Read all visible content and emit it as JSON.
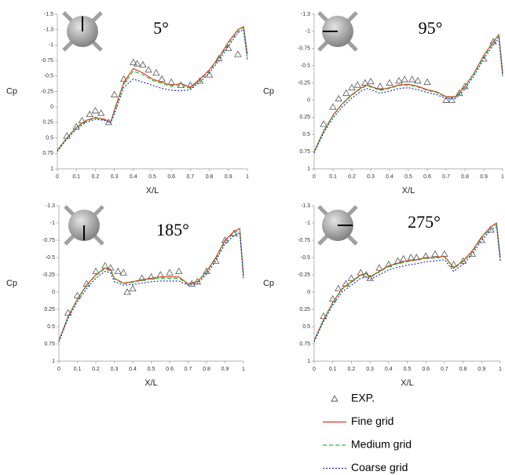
{
  "chart_data": [
    {
      "type": "line",
      "title": "5°",
      "x_label": "X/L",
      "y_label": "Cp",
      "xlim": [
        0,
        1
      ],
      "xticks": [
        0,
        0.1,
        0.2,
        0.3,
        0.4,
        0.5,
        0.6,
        0.7,
        0.8,
        0.9,
        1
      ],
      "ylim": [
        -1.5,
        1
      ],
      "y_inverted": true,
      "yticks": [
        -1.5,
        {
          "value": -1.25,
          "label": "-1.3"
        },
        -1,
        -0.75,
        -0.5,
        -0.25,
        0,
        0.25,
        0.5,
        0.75,
        1
      ],
      "x": [
        0,
        0.05,
        0.1,
        0.15,
        0.2,
        0.25,
        0.28,
        0.3,
        0.35,
        0.4,
        0.45,
        0.5,
        0.55,
        0.6,
        0.65,
        0.7,
        0.75,
        0.8,
        0.85,
        0.9,
        0.95,
        0.98,
        1
      ],
      "series": [
        {
          "name": "EXP.",
          "marker": "triangle",
          "color": "#555555",
          "x": [
            0.05,
            0.1,
            0.13,
            0.17,
            0.2,
            0.23,
            0.27,
            0.3,
            0.35,
            0.4,
            0.42,
            0.45,
            0.48,
            0.52,
            0.55,
            0.6,
            0.65,
            0.7,
            0.75,
            0.8,
            0.85,
            0.9,
            0.95
          ],
          "values": [
            0.47,
            0.32,
            0.22,
            0.12,
            0.06,
            0.1,
            0.25,
            -0.2,
            -0.45,
            -0.72,
            -0.7,
            -0.68,
            -0.6,
            -0.55,
            -0.45,
            -0.4,
            -0.35,
            -0.35,
            -0.42,
            -0.52,
            -0.78,
            -0.95,
            -0.85
          ]
        },
        {
          "name": "Fine grid",
          "color": "#e03020",
          "linestyle": "solid",
          "values": [
            0.7,
            0.5,
            0.33,
            0.22,
            0.17,
            0.2,
            0.25,
            0.05,
            -0.4,
            -0.62,
            -0.55,
            -0.45,
            -0.4,
            -0.35,
            -0.38,
            -0.32,
            -0.45,
            -0.6,
            -0.8,
            -1.05,
            -1.25,
            -1.3,
            -0.85
          ]
        },
        {
          "name": "Medium grid",
          "color": "#20c020",
          "linestyle": "dashed",
          "values": [
            0.7,
            0.5,
            0.34,
            0.23,
            0.18,
            0.21,
            0.25,
            0.08,
            -0.37,
            -0.58,
            -0.52,
            -0.43,
            -0.38,
            -0.33,
            -0.36,
            -0.3,
            -0.43,
            -0.58,
            -0.78,
            -1.02,
            -1.22,
            -1.28,
            -0.8
          ]
        },
        {
          "name": "Coarse grid",
          "color": "#2020d0",
          "linestyle": "dotted",
          "values": [
            0.72,
            0.52,
            0.36,
            0.25,
            0.2,
            0.22,
            0.26,
            0.12,
            -0.32,
            -0.45,
            -0.4,
            -0.35,
            -0.3,
            -0.27,
            -0.26,
            -0.28,
            -0.4,
            -0.55,
            -0.75,
            -0.98,
            -1.2,
            -1.25,
            -0.75
          ]
        }
      ]
    },
    {
      "type": "line",
      "title": "95°",
      "x_label": "X/L",
      "y_label": "Cp",
      "xlim": [
        0,
        1
      ],
      "xticks": [
        0,
        0.1,
        0.2,
        0.3,
        0.4,
        0.5,
        0.6,
        0.7,
        0.8,
        0.9,
        1
      ],
      "ylim": [
        -1.25,
        1
      ],
      "y_inverted": true,
      "yticks": [
        {
          "value": -1.25,
          "label": "-1.3"
        },
        -1,
        -0.75,
        -0.5,
        -0.25,
        0,
        0.25,
        0.5,
        0.75,
        1
      ],
      "x": [
        0,
        0.05,
        0.1,
        0.15,
        0.2,
        0.25,
        0.28,
        0.3,
        0.35,
        0.4,
        0.45,
        0.5,
        0.55,
        0.6,
        0.65,
        0.7,
        0.75,
        0.8,
        0.85,
        0.9,
        0.95,
        0.98,
        1
      ],
      "series": [
        {
          "marker": "triangle",
          "color": "#555555",
          "x": [
            0.05,
            0.1,
            0.13,
            0.17,
            0.2,
            0.23,
            0.27,
            0.3,
            0.35,
            0.4,
            0.45,
            0.48,
            0.52,
            0.55,
            0.6,
            0.7,
            0.73,
            0.77,
            0.8,
            0.9,
            0.95
          ],
          "values": [
            0.35,
            0.1,
            -0.02,
            -0.1,
            -0.18,
            -0.22,
            -0.25,
            -0.27,
            -0.2,
            -0.25,
            -0.28,
            -0.3,
            -0.3,
            -0.28,
            -0.26,
            0.0,
            0.0,
            -0.1,
            -0.2,
            -0.6,
            -0.85
          ]
        },
        {
          "color": "#e03020",
          "linestyle": "solid",
          "values": [
            0.75,
            0.45,
            0.22,
            0.05,
            -0.08,
            -0.18,
            -0.22,
            -0.2,
            -0.15,
            -0.18,
            -0.22,
            -0.23,
            -0.2,
            -0.15,
            -0.12,
            -0.05,
            -0.05,
            -0.2,
            -0.4,
            -0.65,
            -0.85,
            -0.95,
            -0.4
          ]
        },
        {
          "color": "#20c020",
          "linestyle": "dashed",
          "values": [
            0.75,
            0.46,
            0.23,
            0.06,
            -0.07,
            -0.17,
            -0.21,
            -0.19,
            -0.14,
            -0.17,
            -0.21,
            -0.22,
            -0.19,
            -0.14,
            -0.11,
            -0.04,
            -0.04,
            -0.19,
            -0.39,
            -0.63,
            -0.83,
            -0.93,
            -0.35
          ]
        },
        {
          "color": "#2020d0",
          "linestyle": "dotted",
          "values": [
            0.77,
            0.48,
            0.26,
            0.1,
            -0.03,
            -0.13,
            -0.17,
            -0.15,
            -0.1,
            -0.13,
            -0.17,
            -0.18,
            -0.15,
            -0.11,
            -0.08,
            -0.02,
            -0.02,
            -0.16,
            -0.36,
            -0.6,
            -0.8,
            -0.9,
            -0.35
          ]
        }
      ]
    },
    {
      "type": "line",
      "title": "185°",
      "x_label": "X/L",
      "y_label": "Cp",
      "xlim": [
        0,
        1
      ],
      "xticks": [
        0,
        0.1,
        0.2,
        0.3,
        0.4,
        0.5,
        0.6,
        0.7,
        0.8,
        0.9,
        1
      ],
      "ylim": [
        -1.25,
        1
      ],
      "y_inverted": true,
      "yticks": [
        {
          "value": -1.25,
          "label": "-1.3"
        },
        -1,
        -0.75,
        -0.5,
        -0.25,
        0,
        0.25,
        0.5,
        0.75,
        1
      ],
      "x": [
        0,
        0.05,
        0.1,
        0.15,
        0.2,
        0.25,
        0.28,
        0.3,
        0.35,
        0.4,
        0.45,
        0.5,
        0.55,
        0.6,
        0.65,
        0.7,
        0.75,
        0.8,
        0.85,
        0.9,
        0.95,
        0.98,
        1
      ],
      "series": [
        {
          "marker": "triangle",
          "color": "#555555",
          "x": [
            0.05,
            0.1,
            0.15,
            0.2,
            0.25,
            0.28,
            0.32,
            0.35,
            0.37,
            0.4,
            0.45,
            0.5,
            0.55,
            0.6,
            0.65,
            0.72,
            0.75,
            0.8,
            0.85,
            0.9,
            0.95
          ],
          "values": [
            0.3,
            0.05,
            -0.12,
            -0.3,
            -0.38,
            -0.35,
            -0.3,
            -0.28,
            0.0,
            -0.05,
            -0.2,
            -0.22,
            -0.25,
            -0.28,
            -0.3,
            -0.12,
            -0.15,
            -0.3,
            -0.45,
            -0.75,
            -0.85
          ]
        },
        {
          "color": "#e03020",
          "linestyle": "solid",
          "values": [
            0.7,
            0.35,
            0.1,
            -0.1,
            -0.25,
            -0.35,
            -0.33,
            -0.2,
            -0.13,
            -0.15,
            -0.18,
            -0.2,
            -0.22,
            -0.22,
            -0.22,
            -0.12,
            -0.15,
            -0.3,
            -0.5,
            -0.75,
            -0.88,
            -0.92,
            -0.25
          ]
        },
        {
          "color": "#20c020",
          "linestyle": "dashed",
          "values": [
            0.7,
            0.36,
            0.11,
            -0.09,
            -0.24,
            -0.34,
            -0.32,
            -0.19,
            -0.12,
            -0.14,
            -0.17,
            -0.19,
            -0.2,
            -0.2,
            -0.2,
            -0.11,
            -0.14,
            -0.29,
            -0.48,
            -0.73,
            -0.86,
            -0.9,
            -0.2
          ]
        },
        {
          "color": "#2020d0",
          "linestyle": "dotted",
          "values": [
            0.72,
            0.38,
            0.14,
            -0.05,
            -0.2,
            -0.3,
            -0.28,
            -0.15,
            -0.1,
            -0.11,
            -0.13,
            -0.15,
            -0.16,
            -0.16,
            -0.16,
            -0.1,
            -0.12,
            -0.26,
            -0.45,
            -0.7,
            -0.82,
            -0.86,
            -0.2
          ]
        }
      ]
    },
    {
      "type": "line",
      "title": "275°",
      "x_label": "X/L",
      "y_label": "Cp",
      "xlim": [
        0,
        1
      ],
      "xticks": [
        0,
        0.1,
        0.2,
        0.3,
        0.4,
        0.5,
        0.6,
        0.7,
        0.8,
        0.9,
        1
      ],
      "ylim": [
        -1.25,
        1
      ],
      "y_inverted": true,
      "yticks": [
        {
          "value": -1.25,
          "label": "-1.3"
        },
        -1,
        -0.75,
        -0.5,
        -0.25,
        0,
        0.25,
        0.5,
        0.75,
        1
      ],
      "x": [
        0,
        0.05,
        0.1,
        0.15,
        0.2,
        0.25,
        0.28,
        0.3,
        0.35,
        0.4,
        0.45,
        0.5,
        0.55,
        0.6,
        0.65,
        0.7,
        0.75,
        0.8,
        0.85,
        0.9,
        0.95,
        0.98,
        1
      ],
      "series": [
        {
          "marker": "triangle",
          "color": "#555555",
          "x": [
            0.05,
            0.1,
            0.13,
            0.17,
            0.2,
            0.25,
            0.28,
            0.3,
            0.35,
            0.4,
            0.45,
            0.48,
            0.52,
            0.55,
            0.6,
            0.65,
            0.7,
            0.75,
            0.8,
            0.85,
            0.9,
            0.95
          ],
          "values": [
            0.35,
            0.1,
            -0.05,
            -0.12,
            -0.2,
            -0.28,
            -0.25,
            -0.2,
            -0.35,
            -0.4,
            -0.45,
            -0.48,
            -0.5,
            -0.5,
            -0.52,
            -0.55,
            -0.55,
            -0.4,
            -0.45,
            -0.55,
            -0.75,
            -0.9
          ]
        },
        {
          "color": "#e03020",
          "linestyle": "solid",
          "values": [
            0.7,
            0.4,
            0.15,
            -0.05,
            -0.15,
            -0.25,
            -0.27,
            -0.22,
            -0.3,
            -0.38,
            -0.42,
            -0.45,
            -0.47,
            -0.5,
            -0.5,
            -0.52,
            -0.35,
            -0.45,
            -0.6,
            -0.8,
            -0.95,
            -1.0,
            -0.5
          ]
        },
        {
          "color": "#20c020",
          "linestyle": "dashed",
          "values": [
            0.7,
            0.41,
            0.16,
            -0.04,
            -0.14,
            -0.24,
            -0.26,
            -0.21,
            -0.29,
            -0.37,
            -0.41,
            -0.44,
            -0.46,
            -0.49,
            -0.49,
            -0.51,
            -0.34,
            -0.44,
            -0.58,
            -0.78,
            -0.93,
            -0.98,
            -0.45
          ]
        },
        {
          "color": "#2020d0",
          "linestyle": "dotted",
          "values": [
            0.72,
            0.43,
            0.19,
            0.0,
            -0.1,
            -0.2,
            -0.22,
            -0.18,
            -0.25,
            -0.32,
            -0.36,
            -0.39,
            -0.41,
            -0.44,
            -0.45,
            -0.47,
            -0.3,
            -0.4,
            -0.55,
            -0.75,
            -0.9,
            -0.95,
            -0.45
          ]
        }
      ]
    }
  ]
}
